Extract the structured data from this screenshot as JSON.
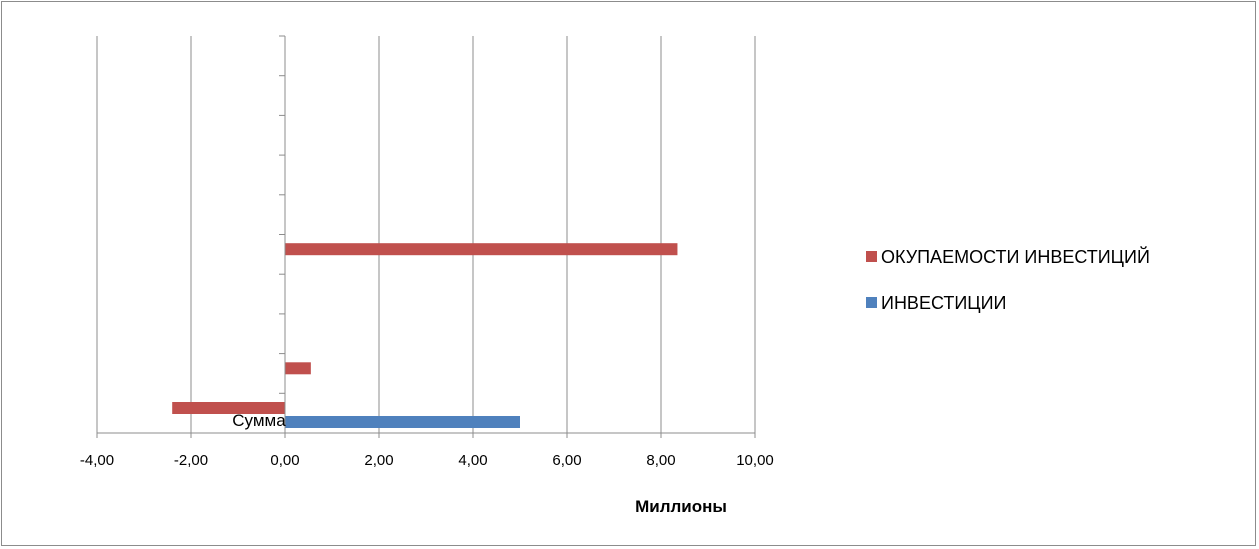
{
  "chart_data": {
    "type": "bar",
    "orientation": "horizontal",
    "categories": [
      "Сумма",
      "",
      "",
      "",
      "",
      "",
      "",
      "",
      "",
      ""
    ],
    "series": [
      {
        "name": "ИНВЕСТИЦИИ",
        "color": "#4F81BD",
        "values": [
          5.0,
          null,
          null,
          null,
          null,
          null,
          null,
          null,
          null,
          null
        ]
      },
      {
        "name": "ОКУПАЕМОСТИ ИНВЕСТИЦИЙ",
        "color": "#C0504D",
        "values": [
          -2.4,
          0.55,
          null,
          null,
          8.35,
          null,
          null,
          null,
          null,
          null
        ]
      }
    ],
    "xlim": [
      -4,
      10
    ],
    "xticks": [
      "-4,00",
      "-2,00",
      "0,00",
      "2,00",
      "4,00",
      "6,00",
      "8,00",
      "10,00"
    ],
    "xtick_values": [
      -4,
      -2,
      0,
      2,
      4,
      6,
      8,
      10
    ],
    "xlabel": "Миллионы",
    "ylabel": "",
    "title": "",
    "grid": "vertical",
    "legend_position": "right",
    "legend_order": [
      "ОКУПАЕМОСТИ ИНВЕСТИЦИЙ",
      "ИНВЕСТИЦИИ"
    ]
  }
}
